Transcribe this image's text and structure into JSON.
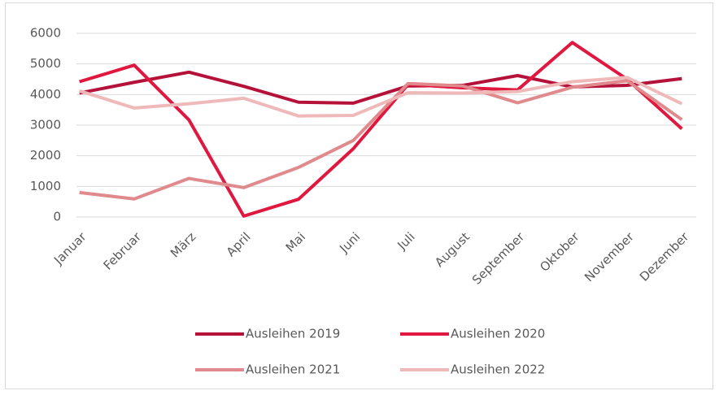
{
  "chart_data": {
    "type": "line",
    "categories": [
      "Januar",
      "Februar",
      "März",
      "April",
      "Mai",
      "Juni",
      "Juli",
      "August",
      "September",
      "Oktober",
      "November",
      "Dezember"
    ],
    "series": [
      {
        "name": "Ausleihen 2019",
        "color": "#b5123a",
        "values": [
          4050,
          4400,
          4730,
          4270,
          3750,
          3720,
          4280,
          4300,
          4620,
          4250,
          4300,
          4520
        ]
      },
      {
        "name": "Ausleihen 2020",
        "color": "#e0173e",
        "values": [
          4420,
          4960,
          3170,
          30,
          580,
          2230,
          4330,
          4220,
          4150,
          5700,
          4500,
          2880
        ]
      },
      {
        "name": "Ausleihen 2021",
        "color": "#e08a8e",
        "values": [
          800,
          590,
          1260,
          960,
          1620,
          2500,
          4360,
          4280,
          3730,
          4240,
          4450,
          3180
        ]
      },
      {
        "name": "Ausleihen 2022",
        "color": "#f0b9b9",
        "values": [
          4120,
          3560,
          3700,
          3880,
          3300,
          3320,
          4060,
          4050,
          4100,
          4420,
          4560,
          3700
        ]
      }
    ],
    "ylim": [
      0,
      6000
    ],
    "yticks": [
      0,
      1000,
      2000,
      3000,
      4000,
      5000,
      6000
    ],
    "grid": true,
    "legend": "bottom"
  }
}
